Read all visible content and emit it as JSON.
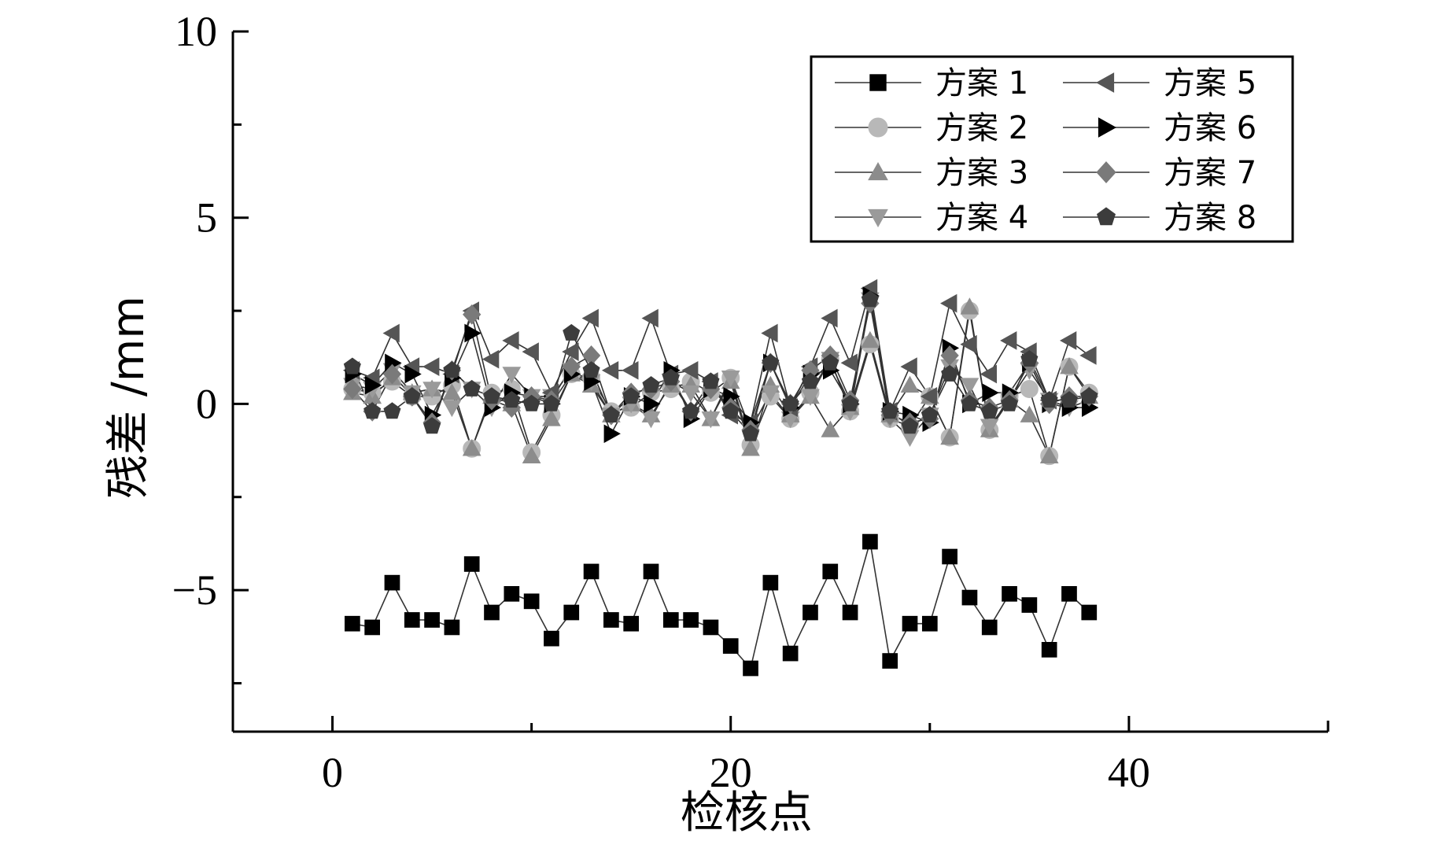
{
  "chart_data": {
    "type": "line",
    "xlabel": "检核点",
    "ylabel": "残差 /mm",
    "xlim": [
      -5,
      50
    ],
    "ylim": [
      -8.8,
      10
    ],
    "x_ticks": [
      0,
      20,
      40
    ],
    "x_tick_labels": [
      "0",
      "20",
      "40"
    ],
    "y_ticks": [
      -5,
      0,
      5,
      10
    ],
    "y_tick_labels": [
      "−5",
      "0",
      "5",
      "10"
    ],
    "grid": false,
    "legend_position": "top-right",
    "x": [
      1,
      2,
      3,
      4,
      5,
      6,
      7,
      8,
      9,
      10,
      11,
      12,
      13,
      14,
      15,
      16,
      17,
      18,
      19,
      20,
      21,
      22,
      23,
      24,
      25,
      26,
      27,
      28,
      29,
      30,
      31,
      32,
      33,
      34,
      35,
      36,
      37,
      38
    ],
    "series": [
      {
        "name": "方案 1",
        "marker": "square",
        "color": "#000000",
        "values": [
          -5.9,
          -6.0,
          -4.8,
          -5.8,
          -5.8,
          -6.0,
          -4.3,
          -5.6,
          -5.1,
          -5.3,
          -6.3,
          -5.6,
          -4.5,
          -5.8,
          -5.9,
          -4.5,
          -5.8,
          -5.8,
          -6.0,
          -6.5,
          -7.1,
          -4.8,
          -6.7,
          -5.6,
          -4.5,
          -5.6,
          -3.7,
          -6.9,
          -5.9,
          -5.9,
          -4.1,
          -5.2,
          -6.0,
          -5.1,
          -5.4,
          -6.6,
          -5.1,
          -5.6
        ]
      },
      {
        "name": "方案 2",
        "marker": "circle",
        "color": "#b8b8b8",
        "values": [
          0.4,
          0.3,
          0.6,
          0.2,
          0.2,
          0.5,
          -1.2,
          0.3,
          0.4,
          -1.3,
          -0.3,
          0.8,
          0.7,
          -0.2,
          -0.1,
          0.3,
          0.4,
          0.6,
          0.3,
          0.7,
          -1.1,
          0.2,
          -0.4,
          0.3,
          1.2,
          -0.2,
          1.6,
          -0.4,
          -0.6,
          0.2,
          -0.9,
          2.5,
          -0.7,
          0.2,
          0.4,
          -1.4,
          1.0,
          0.3
        ]
      },
      {
        "name": "方案 3",
        "marker": "triangle-up",
        "color": "#8c8c8c",
        "values": [
          0.3,
          0.2,
          0.7,
          0.3,
          0.4,
          0.3,
          -1.2,
          0.2,
          0.0,
          -1.4,
          -0.4,
          0.8,
          0.5,
          -0.3,
          0.0,
          -0.3,
          0.5,
          0.5,
          -0.4,
          0.6,
          -1.2,
          0.5,
          -0.3,
          0.2,
          -0.7,
          -0.1,
          1.7,
          -0.3,
          0.5,
          0.2,
          -0.9,
          2.6,
          -0.7,
          0.1,
          -0.3,
          -1.4,
          1.0,
          0.2
        ]
      },
      {
        "name": "方案 4",
        "marker": "triangle-down",
        "color": "#9a9a9a",
        "values": [
          0.5,
          0.4,
          0.9,
          0.3,
          0.4,
          -0.1,
          0.4,
          -0.1,
          0.8,
          0.2,
          0.2,
          0.9,
          0.6,
          -0.3,
          0.0,
          -0.4,
          0.6,
          0.3,
          -0.4,
          0.7,
          -0.7,
          0.3,
          -0.4,
          0.2,
          1.2,
          -0.2,
          2.8,
          -0.4,
          -0.9,
          -0.3,
          1.0,
          0.5,
          -0.6,
          0.1,
          0.9,
          0.1,
          -0.1,
          0.1
        ]
      },
      {
        "name": "方案 5",
        "marker": "triangle-left",
        "color": "#555555",
        "values": [
          0.9,
          0.7,
          1.9,
          1.0,
          1.0,
          0.8,
          2.5,
          1.2,
          1.7,
          1.4,
          0.3,
          1.4,
          2.3,
          0.9,
          0.9,
          2.3,
          0.8,
          0.9,
          0.6,
          -0.3,
          -0.5,
          1.9,
          -0.1,
          1.0,
          2.3,
          1.1,
          3.1,
          -0.2,
          1.0,
          0.2,
          2.7,
          1.6,
          0.8,
          1.7,
          1.4,
          0.1,
          1.7,
          1.3
        ]
      },
      {
        "name": "方案 6",
        "marker": "triangle-right",
        "color": "#000000",
        "values": [
          0.8,
          0.5,
          1.1,
          0.8,
          -0.3,
          0.7,
          1.9,
          -0.1,
          0.3,
          0.2,
          0.0,
          0.8,
          0.6,
          -0.8,
          0.2,
          0.0,
          0.9,
          -0.4,
          0.4,
          0.2,
          -0.5,
          1.1,
          -0.1,
          0.8,
          0.9,
          0.0,
          2.9,
          -0.2,
          -0.3,
          -0.5,
          1.5,
          0.0,
          0.3,
          0.3,
          1.1,
          0.0,
          -0.1,
          -0.1
        ]
      },
      {
        "name": "方案 7",
        "marker": "diamond",
        "color": "#7a7a7a",
        "values": [
          0.4,
          -0.2,
          0.8,
          0.2,
          -0.5,
          0.9,
          2.4,
          0.1,
          -0.1,
          0.2,
          0.1,
          1.0,
          1.3,
          -0.3,
          0.3,
          0.4,
          0.6,
          -0.2,
          0.4,
          -0.1,
          -0.7,
          1.1,
          0.0,
          0.9,
          1.3,
          0.1,
          2.7,
          -0.3,
          -0.5,
          -0.4,
          1.3,
          0.1,
          -0.1,
          0.1,
          1.1,
          0.0,
          0.2,
          0.2
        ]
      },
      {
        "name": "方案 8",
        "marker": "pentagon",
        "color": "#3c3c3c",
        "values": [
          1.0,
          -0.2,
          -0.2,
          0.2,
          -0.6,
          0.9,
          0.4,
          0.2,
          0.1,
          0.0,
          0.0,
          1.9,
          0.9,
          -0.3,
          0.2,
          0.5,
          0.7,
          -0.2,
          0.6,
          -0.2,
          -0.8,
          1.1,
          0.0,
          0.6,
          1.1,
          0.0,
          2.8,
          -0.2,
          -0.6,
          -0.3,
          0.8,
          0.0,
          -0.2,
          0.0,
          1.2,
          0.1,
          0.1,
          0.2
        ]
      }
    ]
  }
}
